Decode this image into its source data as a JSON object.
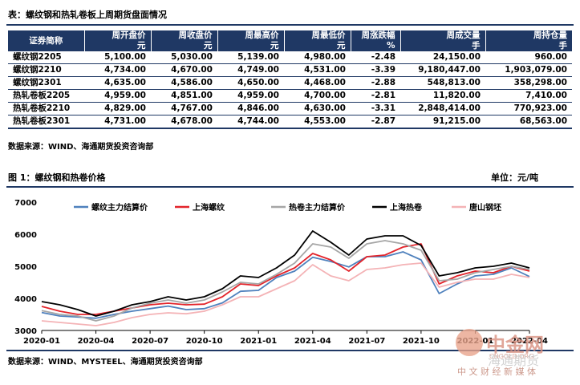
{
  "table": {
    "caption": "表：螺纹钢和热轧卷板上周期货盘面情况",
    "headers": [
      {
        "line1": "证券简称",
        "line2": ""
      },
      {
        "line1": "周开盘价",
        "line2": "元"
      },
      {
        "line1": "周收盘价",
        "line2": "元"
      },
      {
        "line1": "周最高价",
        "line2": "元"
      },
      {
        "line1": "周最低价",
        "line2": "元"
      },
      {
        "line1": "周涨跌幅",
        "line2": "%"
      },
      {
        "line1": "周成交量",
        "line2": "手"
      },
      {
        "line1": "周持仓量",
        "line2": "手"
      }
    ],
    "rows": [
      [
        "螺纹钢2205",
        "5,100.00",
        "5,030.00",
        "5,139.00",
        "4,980.00",
        "-2.48",
        "24,150.00",
        "960.00"
      ],
      [
        "螺纹钢2210",
        "4,734.00",
        "4,670.00",
        "4,749.00",
        "4,531.00",
        "-3.39",
        "9,180,447.00",
        "1,903,079.00"
      ],
      [
        "螺纹钢2301",
        "4,635.00",
        "4,586.00",
        "4,650.00",
        "4,468.00",
        "-2.88",
        "548,813.00",
        "358,298.00"
      ],
      [
        "热轧卷板2205",
        "4,959.00",
        "4,851.00",
        "4,959.00",
        "4,700.00",
        "-2.81",
        "11,820.00",
        "7,410.00"
      ],
      [
        "热轧卷板2210",
        "4,829.00",
        "4,767.00",
        "4,846.00",
        "4,630.00",
        "-3.31",
        "2,848,414.00",
        "770,923.00"
      ],
      [
        "热轧卷板2301",
        "4,731.00",
        "4,678.00",
        "4,744.00",
        "4,553.00",
        "-2.87",
        "91,215.00",
        "68,563.00"
      ]
    ],
    "source": "数据来源：WIND、海通期货投资咨询部"
  },
  "figure": {
    "title": "图 1：螺纹钢和热卷价格",
    "unit": "单位：元/吨",
    "source": "数据来源：WIND、MYSTEEL、海通期货投资咨询部"
  },
  "watermark": {
    "brand": "中金网",
    "sub": "CNGOLD.ORG",
    "tagline": "中 文 财 经 新 媒 体",
    "overlay": "海通期货"
  },
  "chart_data": {
    "type": "line",
    "title": "",
    "xlabel": "",
    "ylabel": "",
    "ylim": [
      3000,
      7000
    ],
    "yticks": [
      3000,
      4000,
      5000,
      6000,
      7000
    ],
    "xlim": [
      "2020-01",
      "2022-04"
    ],
    "xticks": [
      "2020-01",
      "2020-04",
      "2020-07",
      "2020-10",
      "2021-01",
      "2021-04",
      "2021-07",
      "2021-10",
      "2022-01",
      "2022-04"
    ],
    "legend_position": "top",
    "x": [
      "2020-01",
      "2020-02",
      "2020-03",
      "2020-04",
      "2020-05",
      "2020-06",
      "2020-07",
      "2020-08",
      "2020-09",
      "2020-10",
      "2020-11",
      "2020-12",
      "2021-01",
      "2021-02",
      "2021-03",
      "2021-04",
      "2021-05",
      "2021-06",
      "2021-07",
      "2021-08",
      "2021-09",
      "2021-10",
      "2021-11",
      "2021-12",
      "2022-01",
      "2022-02",
      "2022-03",
      "2022-04"
    ],
    "series": [
      {
        "name": "螺纹主力结算价",
        "color": "#4f81bd",
        "values": [
          3560,
          3450,
          3420,
          3380,
          3500,
          3600,
          3680,
          3760,
          3650,
          3680,
          3860,
          4220,
          4250,
          4650,
          4850,
          5280,
          5150,
          4980,
          5300,
          5300,
          5450,
          5200,
          4150,
          4450,
          4700,
          4750,
          4950,
          4680
        ]
      },
      {
        "name": "上海螺纹",
        "color": "#e3242b",
        "values": [
          3750,
          3600,
          3500,
          3500,
          3600,
          3700,
          3800,
          3850,
          3800,
          3820,
          4050,
          4450,
          4400,
          4700,
          4950,
          5400,
          5200,
          4850,
          5300,
          5350,
          5600,
          5700,
          4450,
          4700,
          4850,
          4800,
          5000,
          4850
        ]
      },
      {
        "name": "热卷主力结算价",
        "color": "#a6a6a6",
        "values": [
          3620,
          3500,
          3450,
          3300,
          3450,
          3700,
          3850,
          3950,
          3850,
          3950,
          4200,
          4500,
          4450,
          4750,
          5100,
          5700,
          5600,
          5250,
          5700,
          5800,
          5700,
          5500,
          4550,
          4600,
          4800,
          4900,
          5000,
          4900
        ]
      },
      {
        "name": "上海热卷",
        "color": "#000000",
        "values": [
          3900,
          3800,
          3650,
          3450,
          3600,
          3800,
          3900,
          4050,
          3950,
          4050,
          4300,
          4700,
          4650,
          4950,
          5350,
          6100,
          5750,
          5350,
          5850,
          5950,
          5950,
          5650,
          4700,
          4800,
          4950,
          5000,
          5100,
          4950
        ]
      },
      {
        "name": "唐山钢坯",
        "color": "#f4b3b6",
        "values": [
          3300,
          3250,
          3200,
          3150,
          3250,
          3400,
          3500,
          3550,
          3520,
          3600,
          3800,
          4050,
          4050,
          4300,
          4550,
          5050,
          4700,
          4550,
          4900,
          4950,
          5050,
          5100,
          4350,
          4500,
          4600,
          4600,
          4750,
          4650
        ]
      }
    ]
  }
}
